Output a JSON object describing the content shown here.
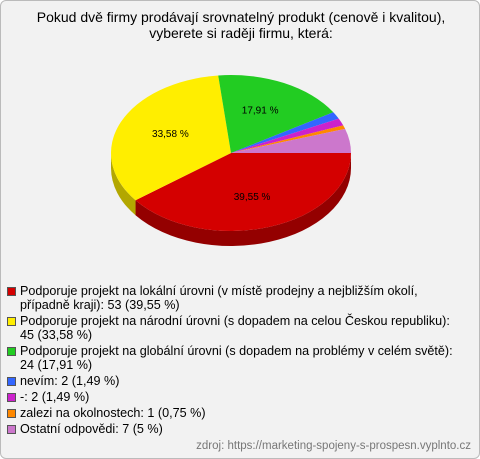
{
  "chart_data": {
    "type": "pie",
    "title": "Pokud dvě firmy prodávají srovnatelný produkt (cenově i kvalitou), vyberete si raději firmu, která:",
    "categories": [
      "Podporuje projekt na lokální úrovni (v místě prodejny a nejbližším okolí, případně kraji): 53 (39,55 %)",
      "Podporuje projekt na národní úrovni (s dopadem na celou Českou republiku): 45 (33,58 %)",
      "Podporuje projekt na globální úrovni (s dopadem na problémy v celém světě): 24 (17,91 %)",
      "nevím: 2 (1,49 %)",
      "-: 2 (1,49 %)",
      "zalezi na okolnostech: 1 (0,75 %)",
      "Ostatní odpovědi: 7 (5 %)"
    ],
    "values": [
      39.55,
      33.58,
      17.91,
      1.49,
      1.49,
      0.75,
      5
    ],
    "value_labels": [
      "39,55 %",
      "33,58 %",
      "17,91 %",
      null,
      null,
      null,
      null
    ],
    "colors": [
      "#d40000",
      "#ffee00",
      "#22cc22",
      "#3366ff",
      "#cc22cc",
      "#ff8800",
      "#cc77cc"
    ],
    "source": "zdroj: https://marketing-spojeny-s-prospesn.vyplnto.cz"
  }
}
